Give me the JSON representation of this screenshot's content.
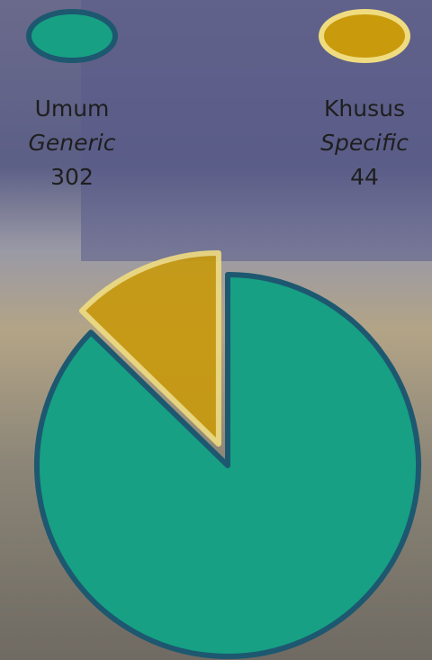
{
  "chart_data": {
    "type": "pie",
    "categories": [
      "Umum",
      "Khusus"
    ],
    "category_translations": [
      "Generic",
      "Specific"
    ],
    "values": [
      302,
      44
    ],
    "colors": [
      "#17a084",
      "#c99a0c"
    ],
    "exploded": [
      false,
      true
    ]
  }
}
